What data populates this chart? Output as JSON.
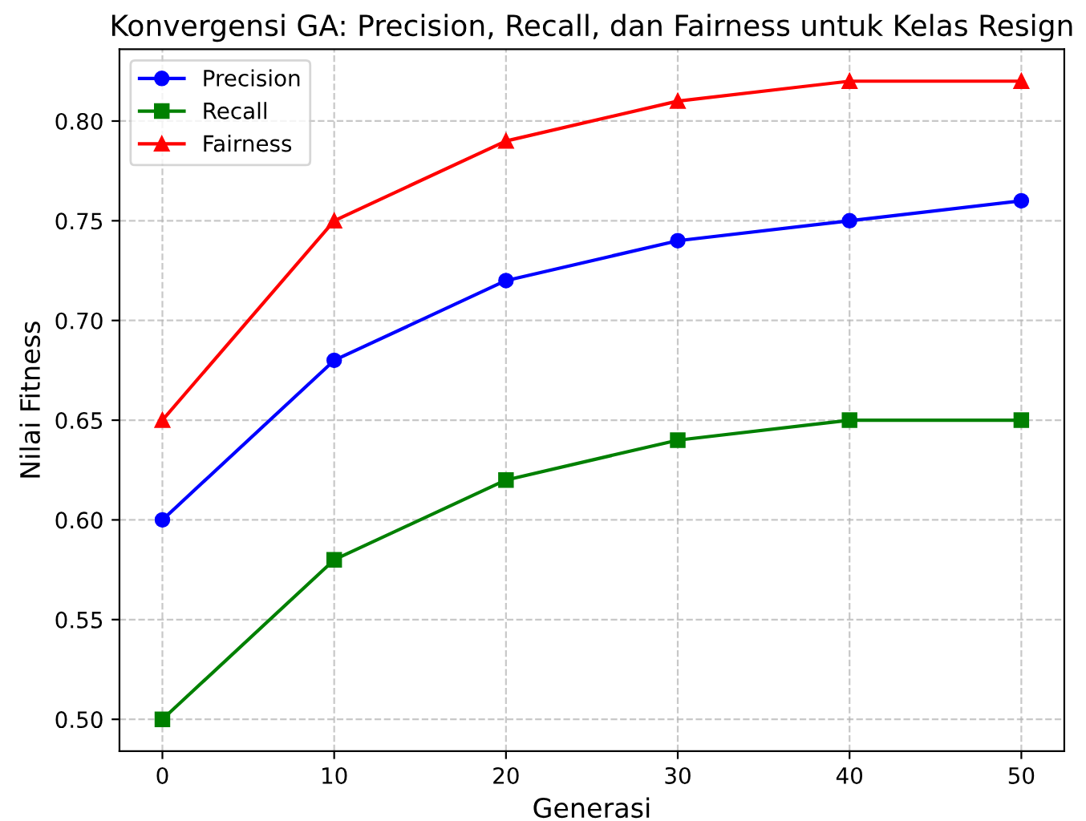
{
  "chart_data": {
    "type": "line",
    "title": "Konvergensi GA: Precision, Recall, dan Fairness untuk Kelas Resign",
    "xlabel": "Generasi",
    "ylabel": "Nilai Fitness",
    "x": [
      0,
      10,
      20,
      30,
      40,
      50
    ],
    "series": [
      {
        "name": "Precision",
        "color": "#0000ff",
        "marker": "circle",
        "values": [
          0.6,
          0.68,
          0.72,
          0.74,
          0.75,
          0.76
        ]
      },
      {
        "name": "Recall",
        "color": "#008000",
        "marker": "square",
        "values": [
          0.5,
          0.58,
          0.62,
          0.64,
          0.65,
          0.65
        ]
      },
      {
        "name": "Fairness",
        "color": "#ff0000",
        "marker": "triangle",
        "values": [
          0.65,
          0.75,
          0.79,
          0.81,
          0.82,
          0.82
        ]
      }
    ],
    "xlim": [
      -2.5,
      52.5
    ],
    "xticks": [
      0,
      10,
      20,
      30,
      40,
      50
    ],
    "ylim": [
      0.484,
      0.836
    ],
    "yticks": [
      {
        "value": 0.5,
        "label": "0.50"
      },
      {
        "value": 0.55,
        "label": "0.55"
      },
      {
        "value": 0.6,
        "label": "0.60"
      },
      {
        "value": 0.65,
        "label": "0.65"
      },
      {
        "value": 0.7,
        "label": "0.70"
      },
      {
        "value": 0.75,
        "label": "0.75"
      },
      {
        "value": 0.8,
        "label": "0.80"
      }
    ],
    "grid": true,
    "legend": "top left",
    "line_style": "solid"
  }
}
